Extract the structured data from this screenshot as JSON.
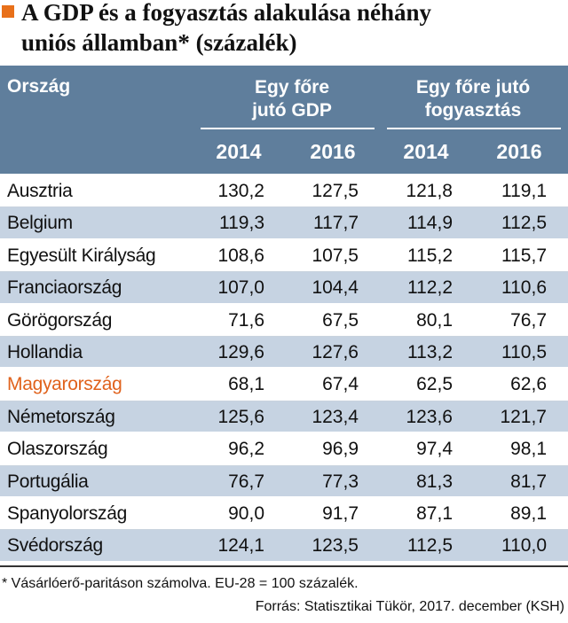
{
  "title": {
    "line1": "A GDP és a fogyasztás alakulása néhány",
    "line2": "uniós államban* (százalék)"
  },
  "colors": {
    "accent": "#e8701a",
    "header_bg": "#5f7e9c",
    "stripe": "#c6d3e2",
    "highlight_text": "#e0621c"
  },
  "header": {
    "country": "Ország",
    "group1_line1": "Egy főre",
    "group1_line2": "jutó GDP",
    "group2_line1": "Egy főre jutó",
    "group2_line2": "fogyasztás",
    "years": [
      "2014",
      "2016",
      "2014",
      "2016"
    ]
  },
  "rows": [
    {
      "country": "Ausztria",
      "gdp2014": "130,2",
      "gdp2016": "127,5",
      "fog2014": "121,8",
      "fog2016": "119,1"
    },
    {
      "country": "Belgium",
      "gdp2014": "119,3",
      "gdp2016": "117,7",
      "fog2014": "114,9",
      "fog2016": "112,5"
    },
    {
      "country": "Egyesült Királyság",
      "gdp2014": "108,6",
      "gdp2016": "107,5",
      "fog2014": "115,2",
      "fog2016": "115,7"
    },
    {
      "country": "Franciaország",
      "gdp2014": "107,0",
      "gdp2016": "104,4",
      "fog2014": "112,2",
      "fog2016": "110,6"
    },
    {
      "country": "Görögország",
      "gdp2014": "71,6",
      "gdp2016": "67,5",
      "fog2014": "80,1",
      "fog2016": "76,7"
    },
    {
      "country": "Hollandia",
      "gdp2014": "129,6",
      "gdp2016": "127,6",
      "fog2014": "113,2",
      "fog2016": "110,5"
    },
    {
      "country": "Magyarország",
      "gdp2014": "68,1",
      "gdp2016": "67,4",
      "fog2014": "62,5",
      "fog2016": "62,6"
    },
    {
      "country": "Németország",
      "gdp2014": "125,6",
      "gdp2016": "123,4",
      "fog2014": "123,6",
      "fog2016": "121,7"
    },
    {
      "country": "Olaszország",
      "gdp2014": "96,2",
      "gdp2016": "96,9",
      "fog2014": "97,4",
      "fog2016": "98,1"
    },
    {
      "country": "Portugália",
      "gdp2014": "76,7",
      "gdp2016": "77,3",
      "fog2014": "81,3",
      "fog2016": "81,7"
    },
    {
      "country": "Spanyolország",
      "gdp2014": "90,0",
      "gdp2016": "91,7",
      "fog2014": "87,1",
      "fog2016": "89,1"
    },
    {
      "country": "Svédország",
      "gdp2014": "124,1",
      "gdp2016": "123,5",
      "fog2014": "112,5",
      "fog2016": "110,0"
    }
  ],
  "footnote": "* Vásárlóerő-paritáson számolva. EU-28 = 100 százalék.",
  "source": "Forrás: Statisztikai Tükör, 2017. december (KSH)"
}
